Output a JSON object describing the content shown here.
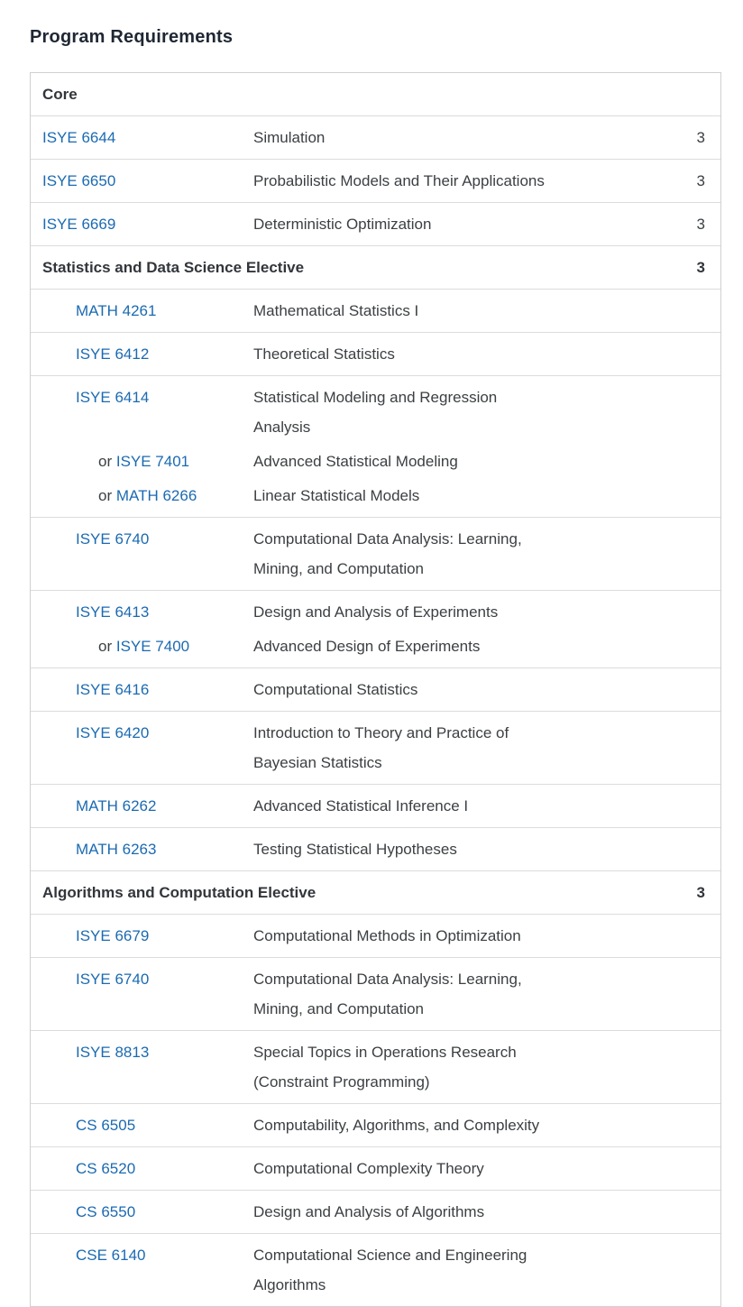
{
  "header": {
    "title": "Program Requirements"
  },
  "colors": {
    "link_blue": "#1b6ab1",
    "body_text": "#3c4043",
    "heading_text": "#1f2733",
    "table_border": "#d0d0d0",
    "row_divider": "#dcdcdc",
    "background": "#ffffff"
  },
  "table": {
    "columns": [
      "code",
      "title",
      "hours"
    ],
    "rows": [
      {
        "type": "section",
        "title": "Core",
        "hours": ""
      },
      {
        "type": "course",
        "indent": 0,
        "code": "ISYE 6644",
        "title": "Simulation",
        "hours": "3"
      },
      {
        "type": "course",
        "indent": 0,
        "code": "ISYE 6650",
        "title": "Probabilistic Models and Their Applications",
        "hours": "3"
      },
      {
        "type": "course",
        "indent": 0,
        "code": "ISYE 6669",
        "title": "Deterministic Optimization",
        "hours": "3"
      },
      {
        "type": "section",
        "title": "Statistics and Data Science Elective",
        "hours": "3"
      },
      {
        "type": "course",
        "indent": 1,
        "code": "MATH 4261",
        "title": "Mathematical Statistics I",
        "hours": ""
      },
      {
        "type": "course",
        "indent": 1,
        "code": "ISYE 6412",
        "title": "Theoretical Statistics",
        "hours": ""
      },
      {
        "type": "course",
        "indent": 1,
        "code": "ISYE 6414",
        "title": "Statistical Modeling and Regression Analysis",
        "hours": "",
        "alternatives": [
          {
            "prefix": "or ",
            "code": "ISYE 7401",
            "title": "Advanced Statistical Modeling"
          },
          {
            "prefix": "or ",
            "code": "MATH 6266",
            "title": "Linear Statistical Models"
          }
        ]
      },
      {
        "type": "course",
        "indent": 1,
        "code": "ISYE 6740",
        "title": "Computational Data Analysis: Learning, Mining, and Computation",
        "hours": ""
      },
      {
        "type": "course",
        "indent": 1,
        "code": "ISYE 6413",
        "title": "Design and Analysis of Experiments",
        "hours": "",
        "alternatives": [
          {
            "prefix": "or ",
            "code": "ISYE 7400",
            "title": "Advanced Design of Experiments"
          }
        ]
      },
      {
        "type": "course",
        "indent": 1,
        "code": "ISYE 6416",
        "title": "Computational Statistics",
        "hours": ""
      },
      {
        "type": "course",
        "indent": 1,
        "code": "ISYE 6420",
        "title": "Introduction to Theory and Practice of Bayesian Statistics",
        "hours": ""
      },
      {
        "type": "course",
        "indent": 1,
        "code": "MATH 6262",
        "title": "Advanced Statistical Inference I",
        "hours": ""
      },
      {
        "type": "course",
        "indent": 1,
        "code": "MATH 6263",
        "title": "Testing Statistical Hypotheses",
        "hours": ""
      },
      {
        "type": "section",
        "title": "Algorithms and Computation Elective",
        "hours": "3"
      },
      {
        "type": "course",
        "indent": 1,
        "code": "ISYE 6679",
        "title": "Computational Methods in Optimization",
        "hours": ""
      },
      {
        "type": "course",
        "indent": 1,
        "code": "ISYE 6740",
        "title": "Computational Data Analysis: Learning, Mining, and Computation",
        "hours": ""
      },
      {
        "type": "course",
        "indent": 1,
        "code": "ISYE 8813",
        "title": "Special Topics in Operations Research (Constraint Programming)",
        "hours": ""
      },
      {
        "type": "course",
        "indent": 1,
        "code": "CS 6505",
        "title": "Computability, Algorithms, and Complexity",
        "hours": ""
      },
      {
        "type": "course",
        "indent": 1,
        "code": "CS 6520",
        "title": "Computational Complexity Theory",
        "hours": ""
      },
      {
        "type": "course",
        "indent": 1,
        "code": "CS 6550",
        "title": "Design and Analysis of Algorithms",
        "hours": ""
      },
      {
        "type": "course",
        "indent": 1,
        "code": "CSE 6140",
        "title": "Computational Science and Engineering Algorithms",
        "hours": ""
      }
    ]
  }
}
